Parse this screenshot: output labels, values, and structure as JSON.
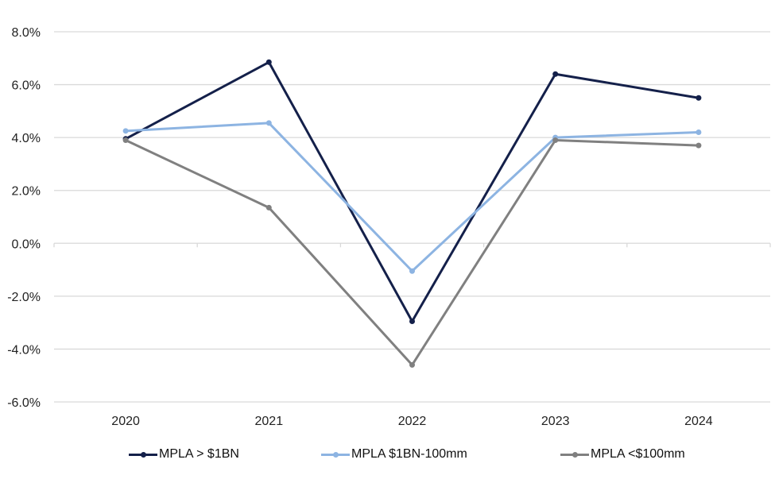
{
  "chart_data": {
    "type": "line",
    "title": "",
    "xlabel": "",
    "ylabel": "",
    "categories": [
      "2020",
      "2021",
      "2022",
      "2023",
      "2024"
    ],
    "ylim": [
      -6.0,
      8.0
    ],
    "yticks": [
      8.0,
      6.0,
      4.0,
      2.0,
      0.0,
      -2.0,
      -4.0,
      -6.0
    ],
    "ytick_labels": [
      "8.0%",
      "6.0%",
      "4.0%",
      "2.0%",
      "0.0%",
      "-2.0%",
      "-4.0%",
      "-6.0%"
    ],
    "grid": true,
    "legend_position": "bottom",
    "series": [
      {
        "name": "MPLA > $1BN",
        "color": "#14204a",
        "values": [
          3.95,
          6.85,
          -2.95,
          6.4,
          5.5
        ]
      },
      {
        "name": "MPLA $1BN-100mm",
        "color": "#8db4e2",
        "values": [
          4.25,
          4.55,
          -1.05,
          4.0,
          4.2
        ]
      },
      {
        "name": "MPLA <$100mm",
        "color": "#808080",
        "values": [
          3.9,
          1.35,
          -4.6,
          3.9,
          3.7
        ]
      }
    ]
  }
}
